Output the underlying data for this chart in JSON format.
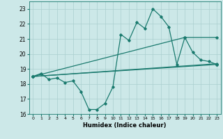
{
  "title": "",
  "xlabel": "Humidex (Indice chaleur)",
  "xlim": [
    -0.5,
    23.5
  ],
  "ylim": [
    16,
    23.5
  ],
  "yticks": [
    16,
    17,
    18,
    19,
    20,
    21,
    22,
    23
  ],
  "xticks": [
    0,
    1,
    2,
    3,
    4,
    5,
    6,
    7,
    8,
    9,
    10,
    11,
    12,
    13,
    14,
    15,
    16,
    17,
    18,
    19,
    20,
    21,
    22,
    23
  ],
  "bg_color": "#cce8e8",
  "line_color": "#1a7a6e",
  "grid_color": "#aacfcf",
  "lines": [
    {
      "x": [
        0,
        1,
        2,
        3,
        4,
        5,
        6,
        7,
        8,
        9,
        10,
        11,
        12,
        13,
        14,
        15,
        16,
        17,
        18,
        19,
        20,
        21,
        22,
        23
      ],
      "y": [
        18.5,
        18.7,
        18.3,
        18.4,
        18.1,
        18.2,
        17.5,
        16.3,
        16.3,
        16.7,
        17.8,
        21.3,
        20.9,
        22.1,
        21.7,
        23.0,
        22.5,
        21.8,
        19.3,
        21.1,
        20.1,
        19.6,
        19.5,
        19.3
      ]
    },
    {
      "x": [
        0,
        19,
        23
      ],
      "y": [
        18.5,
        21.1,
        21.1
      ]
    },
    {
      "x": [
        0,
        23
      ],
      "y": [
        18.5,
        19.3
      ]
    },
    {
      "x": [
        0,
        23
      ],
      "y": [
        18.5,
        19.35
      ]
    }
  ]
}
